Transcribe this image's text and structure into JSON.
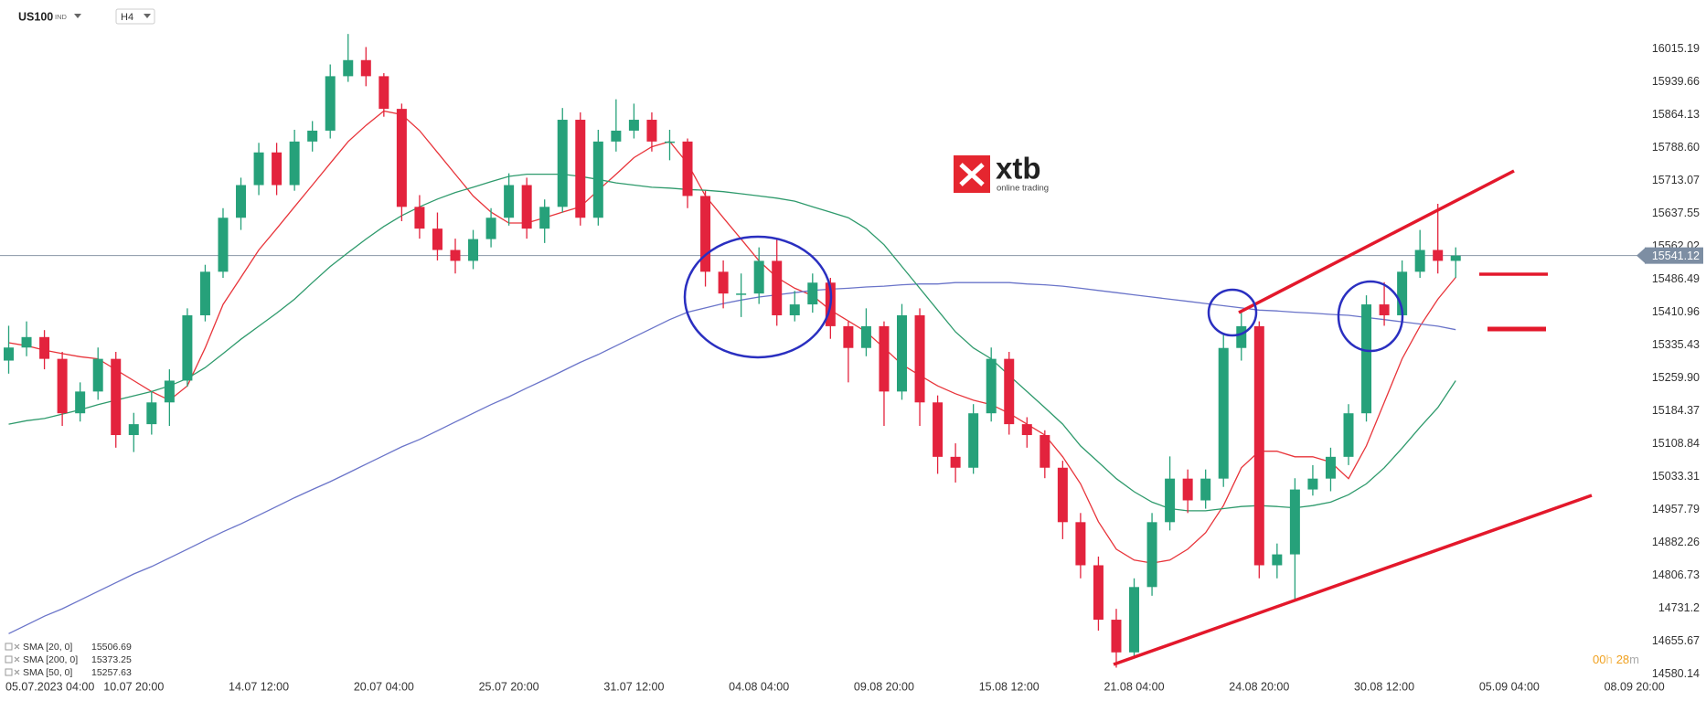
{
  "chart_data": {
    "type": "candlestick",
    "title": "US100",
    "exchange": "IND",
    "timeframe": "H4",
    "logo_text": "xtb",
    "logo_subtext": "online trading",
    "current_price": 15541.12,
    "countdown": [
      "00",
      "h",
      "28",
      "m"
    ],
    "ylim": [
      14575,
      16128
    ],
    "yticks": [
      16015.19,
      15939.66,
      15864.13,
      {
        "value": 15788.6,
        "label": "15788.60"
      },
      15713.07,
      15637.55,
      15562.02,
      15486.49,
      15410.96,
      15335.43,
      {
        "value": 15259.9,
        "label": "15259.90"
      },
      15184.37,
      15108.84,
      15033.31,
      14957.79,
      14882.26,
      14806.73,
      14731.2,
      14655.67,
      14580.14
    ],
    "grid": false,
    "categories": [
      "05.07.2023 04:00",
      null,
      null,
      null,
      null,
      null,
      null,
      "10.07 20:00",
      null,
      null,
      null,
      null,
      null,
      null,
      "14.07 12:00",
      null,
      null,
      null,
      null,
      null,
      null,
      "20.07 04:00",
      null,
      null,
      null,
      null,
      null,
      null,
      "25.07 20:00",
      null,
      null,
      null,
      null,
      null,
      null,
      "31.07 12:00",
      null,
      null,
      null,
      null,
      null,
      null,
      "04.08 04:00",
      null,
      null,
      null,
      null,
      null,
      null,
      "09.08 20:00",
      null,
      null,
      null,
      null,
      null,
      null,
      "15.08 12:00",
      null,
      null,
      null,
      null,
      null,
      null,
      "21.08 04:00",
      null,
      null,
      null,
      null,
      null,
      null,
      "24.08 20:00",
      null,
      null,
      null,
      null,
      null,
      null,
      "30.08 12:00",
      null,
      null,
      null,
      null,
      null,
      null,
      "05.09 04:00",
      null,
      null,
      null,
      null,
      null,
      null,
      "08.09 20:00"
    ],
    "series": [
      {
        "up_color": "#26a17a",
        "down_color": "#e3233d",
        "values": [
          [
            15300,
            15380,
            15270,
            15330
          ],
          [
            15330,
            15390,
            15310,
            15354
          ],
          [
            15354,
            15370,
            15280,
            15304
          ],
          [
            15304,
            15320,
            15150,
            15179
          ],
          [
            15179,
            15250,
            15160,
            15229
          ],
          [
            15229,
            15330,
            15210,
            15304
          ],
          [
            15304,
            15320,
            15100,
            15129
          ],
          [
            15129,
            15180,
            15090,
            15154
          ],
          [
            15154,
            15230,
            15130,
            15204
          ],
          [
            15204,
            15280,
            15150,
            15254
          ],
          [
            15254,
            15420,
            15240,
            15404
          ],
          [
            15404,
            15520,
            15390,
            15504
          ],
          [
            15504,
            15650,
            15490,
            15628
          ],
          [
            15628,
            15720,
            15600,
            15703
          ],
          [
            15703,
            15800,
            15680,
            15778
          ],
          [
            15778,
            15800,
            15680,
            15703
          ],
          [
            15703,
            15830,
            15690,
            15803
          ],
          [
            15803,
            15850,
            15780,
            15828
          ],
          [
            15828,
            15980,
            15810,
            15953
          ],
          [
            15953,
            16050,
            15940,
            15990
          ],
          [
            15990,
            16020,
            15930,
            15953
          ],
          [
            15953,
            15960,
            15860,
            15878
          ],
          [
            15878,
            15890,
            15620,
            15653
          ],
          [
            15653,
            15680,
            15580,
            15603
          ],
          [
            15603,
            15640,
            15530,
            15554
          ],
          [
            15554,
            15580,
            15500,
            15529
          ],
          [
            15529,
            15600,
            15510,
            15579
          ],
          [
            15579,
            15650,
            15560,
            15628
          ],
          [
            15628,
            15730,
            15610,
            15703
          ],
          [
            15703,
            15720,
            15580,
            15603
          ],
          [
            15603,
            15670,
            15570,
            15653
          ],
          [
            15653,
            15880,
            15640,
            15853
          ],
          [
            15853,
            15870,
            15610,
            15628
          ],
          [
            15628,
            15830,
            15610,
            15803
          ],
          [
            15803,
            15900,
            15780,
            15828
          ],
          [
            15828,
            15890,
            15810,
            15853
          ],
          [
            15853,
            15870,
            15780,
            15803
          ],
          [
            15803,
            15830,
            15760,
            15803
          ],
          [
            15803,
            15810,
            15650,
            15678
          ],
          [
            15678,
            15690,
            15470,
            15504
          ],
          [
            15504,
            15530,
            15420,
            15454
          ],
          [
            15454,
            15500,
            15400,
            15454
          ],
          [
            15454,
            15560,
            15430,
            15529
          ],
          [
            15529,
            15580,
            15380,
            15404
          ],
          [
            15404,
            15460,
            15390,
            15429
          ],
          [
            15429,
            15500,
            15410,
            15479
          ],
          [
            15479,
            15490,
            15350,
            15379
          ],
          [
            15379,
            15390,
            15250,
            15329
          ],
          [
            15329,
            15420,
            15310,
            15379
          ],
          [
            15379,
            15390,
            15150,
            15229
          ],
          [
            15229,
            15430,
            15210,
            15404
          ],
          [
            15404,
            15420,
            15150,
            15204
          ],
          [
            15204,
            15220,
            15040,
            15079
          ],
          [
            15079,
            15110,
            15020,
            15054
          ],
          [
            15054,
            15200,
            15040,
            15179
          ],
          [
            15179,
            15330,
            15160,
            15304
          ],
          [
            15304,
            15320,
            15130,
            15154
          ],
          [
            15154,
            15170,
            15100,
            15129
          ],
          [
            15129,
            15140,
            15030,
            15054
          ],
          [
            15054,
            15070,
            14890,
            14929
          ],
          [
            14929,
            14950,
            14800,
            14830
          ],
          [
            14830,
            14850,
            14680,
            14705
          ],
          [
            14705,
            14730,
            14595,
            14630
          ],
          [
            14630,
            14800,
            14620,
            14780
          ],
          [
            14780,
            14950,
            14760,
            14929
          ],
          [
            14929,
            15080,
            14910,
            15029
          ],
          [
            15029,
            15050,
            14950,
            14979
          ],
          [
            14979,
            15050,
            14960,
            15029
          ],
          [
            15029,
            15360,
            15010,
            15329
          ],
          [
            15329,
            15410,
            15300,
            15379
          ],
          [
            15379,
            15390,
            14800,
            14830
          ],
          [
            14830,
            14880,
            14800,
            14855
          ],
          [
            14855,
            15030,
            14750,
            15004
          ],
          [
            15004,
            15060,
            14990,
            15029
          ],
          [
            15029,
            15100,
            15000,
            15079
          ],
          [
            15079,
            15200,
            15060,
            15179
          ],
          [
            15179,
            15450,
            15160,
            15429
          ],
          [
            15429,
            15480,
            15380,
            15404
          ],
          [
            15404,
            15530,
            15390,
            15504
          ],
          [
            15504,
            15600,
            15490,
            15554
          ],
          [
            15554,
            15660,
            15500,
            15529
          ],
          [
            15529,
            15560,
            15490,
            15541
          ],
          null,
          null,
          null,
          null,
          null,
          null,
          null,
          null,
          null,
          null
        ]
      },
      {
        "name": "SMA [20, 0]",
        "last_value": 15506.69,
        "color": "#e8343a",
        "values": [
          15341,
          15334,
          15324,
          15316,
          15309,
          15304,
          15279,
          15254,
          15229,
          15209,
          15242,
          15329,
          15429,
          15491,
          15554,
          15603,
          15653,
          15703,
          15753,
          15803,
          15840,
          15873,
          15865,
          15828,
          15778,
          15728,
          15678,
          15641,
          15616,
          15616,
          15628,
          15641,
          15653,
          15691,
          15728,
          15766,
          15791,
          15803,
          15753,
          15678,
          15628,
          15579,
          15529,
          15491,
          15466,
          15449,
          15416,
          15391,
          15366,
          15329,
          15291,
          15266,
          15242,
          15224,
          15209,
          15199,
          15179,
          15154,
          15129,
          15079,
          15017,
          14930,
          14867,
          14842,
          14835,
          14842,
          14867,
          14905,
          14967,
          15054,
          15092,
          15092,
          15079,
          15079,
          15067,
          15029,
          15104,
          15204,
          15304,
          15379,
          15441,
          15491,
          null,
          null,
          null,
          null,
          null,
          null,
          null,
          null,
          null,
          null
        ]
      },
      {
        "name": "SMA [200, 0]",
        "last_value": 15373.25,
        "color": "#6a74c9",
        "values": [
          14673,
          14693,
          14713,
          14730,
          14750,
          14770,
          14790,
          14810,
          14827,
          14847,
          14867,
          14887,
          14907,
          14925,
          14945,
          14965,
          14985,
          15004,
          15022,
          15042,
          15062,
          15082,
          15102,
          15119,
          15139,
          15159,
          15179,
          15199,
          15217,
          15237,
          15256,
          15276,
          15296,
          15314,
          15334,
          15354,
          15374,
          15394,
          15411,
          15421,
          15431,
          15439,
          15446,
          15451,
          15456,
          15461,
          15464,
          15466,
          15469,
          15471,
          15474,
          15476,
          15476,
          15479,
          15479,
          15479,
          15479,
          15476,
          15474,
          15471,
          15466,
          15461,
          15456,
          15451,
          15446,
          15441,
          15436,
          15431,
          15426,
          15421,
          15416,
          15414,
          15411,
          15409,
          15406,
          15404,
          15399,
          15394,
          15389,
          15384,
          15379,
          15371,
          null,
          null,
          null,
          null,
          null,
          null,
          null,
          null,
          null,
          null
        ]
      },
      {
        "name": "SMA [50, 0]",
        "last_value": 15257.63,
        "color": "#2e9a6c",
        "values": [
          15154,
          15162,
          15167,
          15177,
          15187,
          15199,
          15209,
          15219,
          15229,
          15242,
          15259,
          15284,
          15316,
          15349,
          15379,
          15409,
          15441,
          15479,
          15516,
          15548,
          15579,
          15608,
          15633,
          15653,
          15671,
          15686,
          15698,
          15711,
          15723,
          15728,
          15728,
          15728,
          15723,
          15716,
          15708,
          15703,
          15698,
          15696,
          15693,
          15691,
          15688,
          15683,
          15678,
          15673,
          15666,
          15653,
          15641,
          15628,
          15603,
          15566,
          15516,
          15466,
          15416,
          15366,
          15329,
          15304,
          15266,
          15229,
          15192,
          15154,
          15104,
          15067,
          15029,
          14999,
          14975,
          14960,
          14955,
          14955,
          14960,
          14965,
          14967,
          14965,
          14962,
          14967,
          14975,
          14992,
          15017,
          15054,
          15099,
          15147,
          15192,
          15254,
          null,
          null,
          null,
          null,
          null,
          null,
          null,
          null,
          null,
          null
        ]
      }
    ]
  }
}
